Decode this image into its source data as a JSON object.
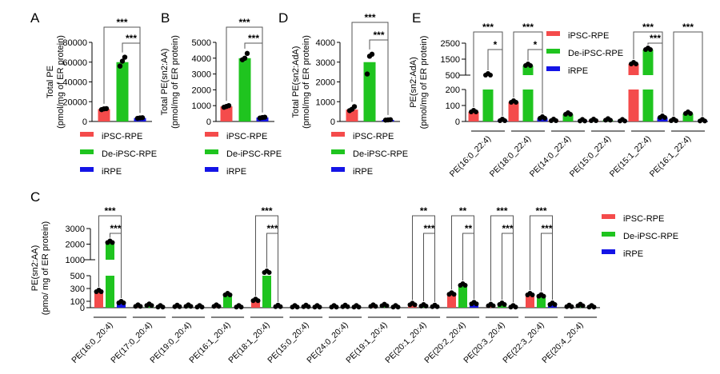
{
  "colors": {
    "iPSC-RPE": "#f44b4b",
    "De-iPSC-RPE": "#1fc41f",
    "iRPE": "#1414e6"
  },
  "legend": [
    "iPSC-RPE",
    "De-iPSC-RPE",
    "iRPE"
  ],
  "chart_data": [
    {
      "panel": "A",
      "type": "bar",
      "ylabel": "Total PE",
      "ylabel2": "(pmol/mg of ER protein)",
      "yticks": [
        0,
        20000,
        40000,
        60000,
        80000
      ],
      "ylim": [
        0,
        80000
      ],
      "categories": [
        ""
      ],
      "series": [
        {
          "name": "iPSC-RPE",
          "values": [
            12500
          ],
          "points": [
            [
              12000,
              12800,
              13000
            ]
          ]
        },
        {
          "name": "De-iPSC-RPE",
          "values": [
            60000
          ],
          "points": [
            [
              56000,
              61000,
              65000
            ]
          ]
        },
        {
          "name": "iRPE",
          "values": [
            3500
          ],
          "points": [
            [
              3200,
              3600,
              3800
            ]
          ]
        }
      ],
      "significance": [
        {
          "pair": [
            0,
            2
          ],
          "label": "***"
        },
        {
          "pair": [
            1,
            2
          ],
          "label": "***"
        }
      ],
      "legend_position": "bottom"
    },
    {
      "panel": "B",
      "type": "bar",
      "ylabel": "Total PE(sn2:AA)",
      "ylabel2": "(pmol/mg of ER protein)",
      "yticks": [
        0,
        1000,
        2000,
        3000,
        4000,
        5000
      ],
      "ylim": [
        0,
        5000
      ],
      "categories": [
        ""
      ],
      "series": [
        {
          "name": "iPSC-RPE",
          "values": [
            950
          ],
          "points": [
            [
              900,
              950,
              1000
            ]
          ]
        },
        {
          "name": "De-iPSC-RPE",
          "values": [
            4000
          ],
          "points": [
            [
              3900,
              4000,
              4300
            ]
          ]
        },
        {
          "name": "iRPE",
          "values": [
            250
          ],
          "points": [
            [
              220,
              250,
              270
            ]
          ]
        }
      ],
      "significance": [
        {
          "pair": [
            0,
            2
          ],
          "label": "***"
        },
        {
          "pair": [
            1,
            2
          ],
          "label": "***"
        }
      ],
      "legend_position": "bottom"
    },
    {
      "panel": "D",
      "type": "bar",
      "ylabel": "Total PE(sn2:AdA)",
      "ylabel2": "(pmol/mg of ER protein)",
      "yticks": [
        0,
        1000,
        2000,
        3000,
        4000
      ],
      "ylim": [
        0,
        4000
      ],
      "categories": [
        ""
      ],
      "series": [
        {
          "name": "iPSC-RPE",
          "values": [
            600
          ],
          "points": [
            [
              550,
              620,
              750
            ]
          ]
        },
        {
          "name": "De-iPSC-RPE",
          "values": [
            3000
          ],
          "points": [
            [
              2400,
              3300,
              3400
            ]
          ]
        },
        {
          "name": "iRPE",
          "values": [
            80
          ],
          "points": [
            [
              70,
              80,
              90
            ]
          ]
        }
      ],
      "significance": [
        {
          "pair": [
            0,
            2
          ],
          "label": "***"
        },
        {
          "pair": [
            1,
            2
          ],
          "label": "***"
        }
      ],
      "legend_position": "bottom"
    },
    {
      "panel": "E",
      "type": "bar",
      "ylabel": "PE(sn2:AdA)",
      "ylabel2": "(pmol/mg of ER protein)",
      "yticks_lower": [
        0,
        100,
        200
      ],
      "yticks_upper": [
        500,
        1500,
        2500
      ],
      "axis_break": [
        200,
        500
      ],
      "ylim": [
        0,
        2500
      ],
      "categories": [
        "PE(16:0_22:4)",
        "PE(18:0_22:4)",
        "PE(14:0_22:4)",
        "PE(15:0_22:4)",
        "PE(15:1_22:4)",
        "PE(16:1_22:4)"
      ],
      "series": [
        {
          "name": "iPSC-RPE",
          "values": [
            60,
            120,
            5,
            5,
            1200,
            5
          ]
        },
        {
          "name": "De-iPSC-RPE",
          "values": [
            500,
            1100,
            45,
            8,
            2100,
            50
          ]
        },
        {
          "name": "iRPE",
          "values": [
            5,
            20,
            3,
            3,
            25,
            3
          ]
        }
      ],
      "significance": [
        {
          "category": 0,
          "pair": [
            0,
            2
          ],
          "label": "***"
        },
        {
          "category": 0,
          "pair": [
            1,
            2
          ],
          "label": "*"
        },
        {
          "category": 1,
          "pair": [
            0,
            2
          ],
          "label": "***"
        },
        {
          "category": 1,
          "pair": [
            1,
            2
          ],
          "label": "*"
        },
        {
          "category": 4,
          "pair": [
            0,
            2
          ],
          "label": "***"
        },
        {
          "category": 4,
          "pair": [
            1,
            2
          ],
          "label": "***"
        },
        {
          "category": 5,
          "pair": [
            0,
            2
          ],
          "label": "***"
        }
      ],
      "legend_position": "top-right"
    },
    {
      "panel": "C",
      "type": "bar",
      "ylabel": "PE(sn2:AA)",
      "ylabel2": "(pmo/ mg of ER protein)",
      "yticks_lower": [
        0,
        100,
        300,
        500
      ],
      "yticks_upper": [
        1000,
        2000,
        3000
      ],
      "axis_break": [
        500,
        1000
      ],
      "ylim": [
        0,
        3000
      ],
      "categories": [
        "PE(16:0_20:4)",
        "PE(17:0_20:4)",
        "PE(19:0_20:4)",
        "PE(16:1_20:4)",
        "PE(18:1_20:4)",
        "PE(15:0_20:4)",
        "PE(24:0_20:4)",
        "PE(19:1_20:4)",
        "PE(20:1_20:4)",
        "PE(20:2_20:4)",
        "PE(20:3_20:4)",
        "PE(22:3_20:4)",
        "PE(20:4_20:4)"
      ],
      "series": [
        {
          "name": "iPSC-RPE",
          "values": [
            250,
            20,
            15,
            20,
            110,
            10,
            10,
            20,
            45,
            210,
            30,
            200,
            15
          ]
        },
        {
          "name": "De-iPSC-RPE",
          "values": [
            2100,
            35,
            20,
            200,
            800,
            15,
            15,
            30,
            25,
            350,
            50,
            180,
            30
          ]
        },
        {
          "name": "iRPE",
          "values": [
            75,
            10,
            10,
            10,
            15,
            10,
            10,
            10,
            15,
            60,
            10,
            50,
            10
          ]
        }
      ],
      "significance": [
        {
          "category": 0,
          "pair": [
            0,
            2
          ],
          "label": "***"
        },
        {
          "category": 0,
          "pair": [
            1,
            2
          ],
          "label": "***"
        },
        {
          "category": 4,
          "pair": [
            0,
            2
          ],
          "label": "***"
        },
        {
          "category": 4,
          "pair": [
            1,
            2
          ],
          "label": "***"
        },
        {
          "category": 8,
          "pair": [
            0,
            2
          ],
          "label": "**"
        },
        {
          "category": 8,
          "pair": [
            1,
            2
          ],
          "label": "***"
        },
        {
          "category": 9,
          "pair": [
            0,
            2
          ],
          "label": "**"
        },
        {
          "category": 9,
          "pair": [
            1,
            2
          ],
          "label": "**"
        },
        {
          "category": 10,
          "pair": [
            0,
            2
          ],
          "label": "***"
        },
        {
          "category": 10,
          "pair": [
            1,
            2
          ],
          "label": "***"
        },
        {
          "category": 11,
          "pair": [
            0,
            2
          ],
          "label": "***"
        },
        {
          "category": 11,
          "pair": [
            1,
            2
          ],
          "label": "***"
        }
      ],
      "legend_position": "right"
    }
  ]
}
